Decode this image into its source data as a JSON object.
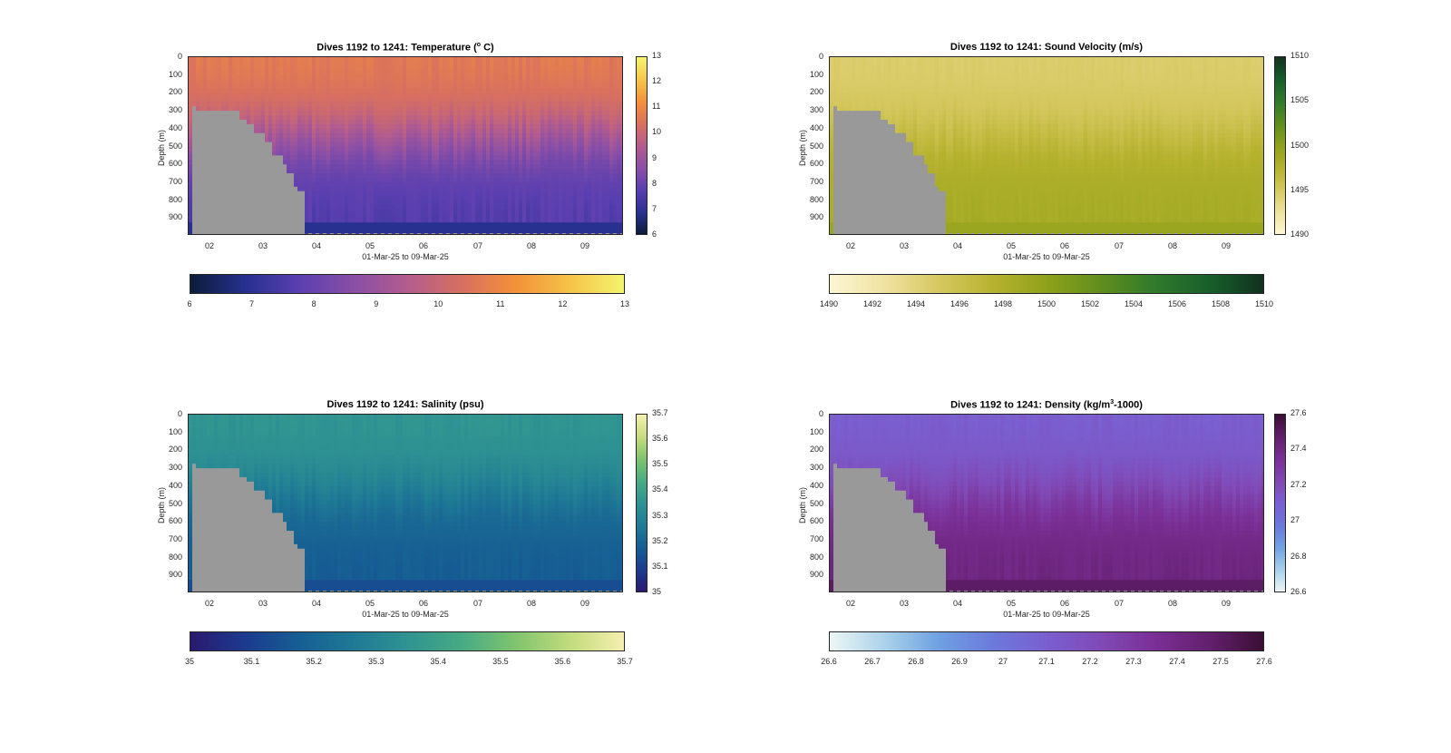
{
  "chart_data": [
    {
      "type": "heatmap",
      "title": "Dives 1192 to 1241: Temperature (° C)",
      "title_main": "Dives 1192 to 1241: Temperature (",
      "title_sup": "o",
      "title_tail": " C)",
      "ylabel": "Depth (m)",
      "xlabel": "01-Mar-25 to 09-Mar-25",
      "x_ticks": [
        "02",
        "03",
        "04",
        "05",
        "06",
        "07",
        "08",
        "09"
      ],
      "y_ticks": [
        "0",
        "100",
        "200",
        "300",
        "400",
        "500",
        "600",
        "700",
        "800",
        "900"
      ],
      "ylim": [
        0,
        1000
      ],
      "clim": [
        6,
        13
      ],
      "cbar_ticks": [
        "6",
        "7",
        "8",
        "9",
        "10",
        "11",
        "12",
        "13"
      ],
      "hbar_ticks": [
        "6",
        "7",
        "8",
        "9",
        "10",
        "11",
        "12",
        "13"
      ],
      "colormap": [
        "#0c1c3a",
        "#27318f",
        "#5a3fb0",
        "#8a4fa6",
        "#b35c8e",
        "#d8705f",
        "#f3913a",
        "#f5c54a",
        "#f4f56e"
      ],
      "surface_value": 10.7,
      "deep_value": 7.6,
      "thermo_value": 9.6
    },
    {
      "type": "heatmap",
      "title": "Dives 1192 to 1241: Sound Velocity (m/s)",
      "title_main": "Dives 1192 to 1241: Sound Velocity (m/s)",
      "title_sup": "",
      "title_tail": "",
      "ylabel": "Depth (m)",
      "xlabel": "01-Mar-25 to 09-Mar-25",
      "x_ticks": [
        "02",
        "03",
        "04",
        "05",
        "06",
        "07",
        "08",
        "09"
      ],
      "y_ticks": [
        "0",
        "100",
        "200",
        "300",
        "400",
        "500",
        "600",
        "700",
        "800",
        "900"
      ],
      "ylim": [
        0,
        1000
      ],
      "clim": [
        1490,
        1510
      ],
      "cbar_ticks": [
        "1490",
        "1495",
        "1500",
        "1505",
        "1510"
      ],
      "hbar_ticks": [
        "1490",
        "1492",
        "1494",
        "1496",
        "1498",
        "1500",
        "1502",
        "1504",
        "1506",
        "1508",
        "1510"
      ],
      "colormap": [
        "#fdf6d3",
        "#efe2a0",
        "#d6c860",
        "#b5b22e",
        "#8fa11a",
        "#5f8d1f",
        "#2f7a2c",
        "#175e2b",
        "#12311f"
      ],
      "surface_value": 1494.5,
      "deep_value": 1498.5,
      "thermo_value": 1496.5
    },
    {
      "type": "heatmap",
      "title": "Dives 1192 to 1241: Salinity (psu)",
      "title_main": "Dives 1192 to 1241: Salinity (psu)",
      "title_sup": "",
      "title_tail": "",
      "ylabel": "Depth (m)",
      "xlabel": "01-Mar-25 to 09-Mar-25",
      "x_ticks": [
        "02",
        "03",
        "04",
        "05",
        "06",
        "07",
        "08",
        "09"
      ],
      "y_ticks": [
        "0",
        "100",
        "200",
        "300",
        "400",
        "500",
        "600",
        "700",
        "800",
        "900"
      ],
      "ylim": [
        0,
        1000
      ],
      "clim": [
        35,
        35.7
      ],
      "cbar_ticks": [
        "35",
        "35.1",
        "35.2",
        "35.3",
        "35.4",
        "35.5",
        "35.6",
        "35.7"
      ],
      "hbar_ticks": [
        "35",
        "35.1",
        "35.2",
        "35.3",
        "35.4",
        "35.5",
        "35.6",
        "35.7"
      ],
      "colormap": [
        "#2a1a6e",
        "#1c3b8f",
        "#165e93",
        "#1f7a95",
        "#2f9392",
        "#48ab83",
        "#80c46e",
        "#c4dc7e",
        "#f6efb0"
      ],
      "surface_value": 35.36,
      "deep_value": 35.17,
      "thermo_value": 35.28
    },
    {
      "type": "heatmap",
      "title": "Dives 1192 to 1241: Density (kg/m³-1000)",
      "title_main": "Dives 1192 to 1241: Density (kg/m",
      "title_sup": "3",
      "title_tail": "-1000)",
      "ylabel": "Depth (m)",
      "xlabel": "01-Mar-25 to 09-Mar-25",
      "x_ticks": [
        "02",
        "03",
        "04",
        "05",
        "06",
        "07",
        "08",
        "09"
      ],
      "y_ticks": [
        "0",
        "100",
        "200",
        "300",
        "400",
        "500",
        "600",
        "700",
        "800",
        "900"
      ],
      "ylim": [
        0,
        1000
      ],
      "clim": [
        26.6,
        27.6
      ],
      "cbar_ticks": [
        "26.6",
        "26.8",
        "27",
        "27.2",
        "27.4",
        "27.6"
      ],
      "hbar_ticks": [
        "26.6",
        "26.7",
        "26.8",
        "26.9",
        "27",
        "27.1",
        "27.2",
        "27.3",
        "27.4",
        "27.5",
        "27.6"
      ],
      "colormap": [
        "#edf6f6",
        "#a9d1ea",
        "#6fa1e2",
        "#6c79db",
        "#7a5fd0",
        "#8049b5",
        "#7a2f95",
        "#621f6c",
        "#3a0f34"
      ],
      "surface_value": 27.1,
      "deep_value": 27.42,
      "thermo_value": 27.22
    }
  ]
}
